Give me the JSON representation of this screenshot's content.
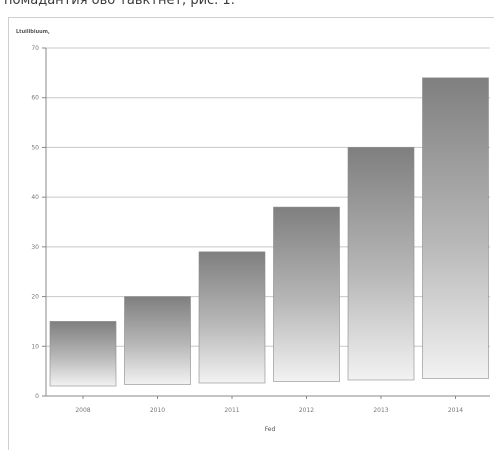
{
  "caption": "помадантия ово тавктнет, рис. 1.",
  "chart_data": {
    "type": "bar",
    "ylabel": "Ltuilibiuum,",
    "xlabel": "Fed",
    "categories": [
      "2008",
      "2010",
      "2011",
      "2012",
      "2013",
      "2014"
    ],
    "values": [
      15,
      20,
      29,
      38,
      50,
      64
    ],
    "ylim": [
      0,
      70
    ],
    "yticks": [
      0,
      10,
      20,
      30,
      40,
      50,
      60,
      70
    ],
    "grid": true,
    "legend": "none"
  }
}
